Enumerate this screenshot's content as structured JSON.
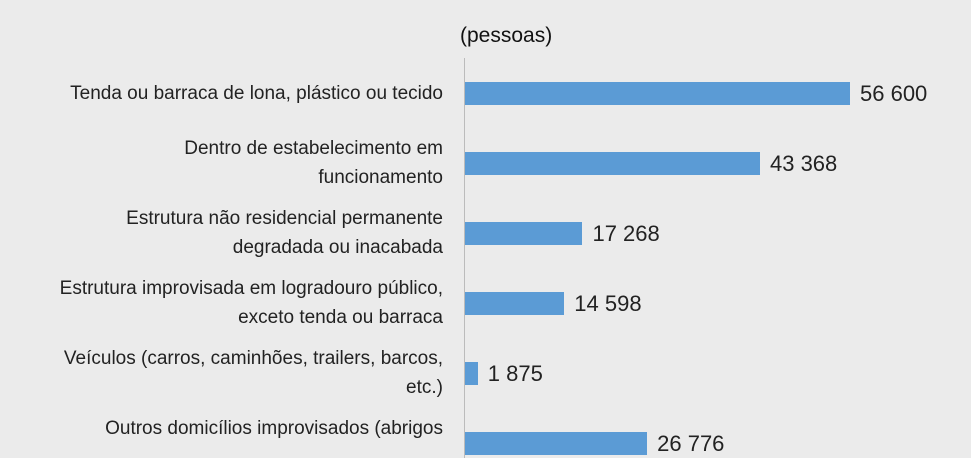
{
  "chart_data": {
    "type": "bar",
    "orientation": "horizontal",
    "subtitle": "(pessoas)",
    "categories": [
      "Tenda ou barraca de lona, plástico ou tecido",
      "Dentro de estabelecimento em\nfuncionamento",
      "Estrutura não residencial permanente\ndegradada ou inacabada",
      "Estrutura improvisada em logradouro público,\nexceto tenda ou barraca",
      "Veículos (carros, caminhões, trailers, barcos,\netc.)",
      "Outros domicílios improvisados (abrigos"
    ],
    "values": [
      56600,
      43368,
      17268,
      14598,
      1875,
      26776
    ],
    "value_labels": [
      "56 600",
      "43 368",
      "17 268",
      "14 598",
      "1 875",
      "26 776"
    ],
    "color": "#5b9bd5"
  }
}
